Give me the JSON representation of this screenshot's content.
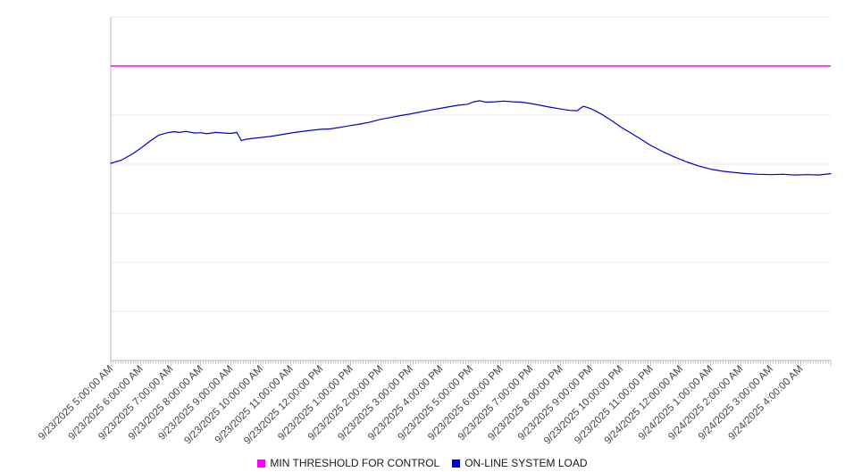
{
  "chart_data": {
    "type": "line",
    "title": "",
    "xlabel": "",
    "ylabel": "",
    "ylim": [
      0,
      100
    ],
    "y_axis_labels_visible": false,
    "grid": true,
    "grid_divisions": 7,
    "legend_position": "bottom",
    "x_axis": {
      "label_rotation_deg": -45,
      "minor_tick_interval_minutes": 5,
      "hours_span": 24,
      "tick_labels": [
        "9/23/2025 5:00:00 AM",
        "9/23/2025 6:00:00 AM",
        "9/23/2025 7:00:00 AM",
        "9/23/2025 8:00:00 AM",
        "9/23/2025 9:00:00 AM",
        "9/23/2025 10:00:00 AM",
        "9/23/2025 11:00:00 AM",
        "9/23/2025 12:00:00 PM",
        "9/23/2025 1:00:00 PM",
        "9/23/2025 2:00:00 PM",
        "9/23/2025 3:00:00 PM",
        "9/23/2025 4:00:00 PM",
        "9/23/2025 5:00:00 PM",
        "9/23/2025 6:00:00 PM",
        "9/23/2025 7:00:00 PM",
        "9/23/2025 8:00:00 PM",
        "9/23/2025 9:00:00 PM",
        "9/23/2025 10:00:00 PM",
        "9/23/2025 11:00:00 PM",
        "9/24/2025 12:00:00 AM",
        "9/24/2025 1:00:00 AM",
        "9/24/2025 2:00:00 AM",
        "9/24/2025 3:00:00 AM",
        "9/24/2025 4:00:00 AM"
      ]
    },
    "series": [
      {
        "name": "MIN THRESHOLD FOR CONTROL",
        "type": "threshold",
        "color": "#FF00FF",
        "value": 85.7
      },
      {
        "name": "ON-LINE SYSTEM LOAD",
        "type": "line",
        "color": "#0000CD",
        "points": [
          [
            0.0,
            57.4
          ],
          [
            0.35,
            58.3
          ],
          [
            0.7,
            60.0
          ],
          [
            1.0,
            61.8
          ],
          [
            1.3,
            63.8
          ],
          [
            1.6,
            65.6
          ],
          [
            1.9,
            66.3
          ],
          [
            2.1,
            66.6
          ],
          [
            2.3,
            66.4
          ],
          [
            2.5,
            66.7
          ],
          [
            2.8,
            66.2
          ],
          [
            3.0,
            66.3
          ],
          [
            3.2,
            66.0
          ],
          [
            3.5,
            66.4
          ],
          [
            3.8,
            66.2
          ],
          [
            4.0,
            66.1
          ],
          [
            4.2,
            66.4
          ],
          [
            4.35,
            64.0
          ],
          [
            4.5,
            64.4
          ],
          [
            4.8,
            64.7
          ],
          [
            5.0,
            64.9
          ],
          [
            5.3,
            65.2
          ],
          [
            5.6,
            65.6
          ],
          [
            6.0,
            66.2
          ],
          [
            6.3,
            66.6
          ],
          [
            6.6,
            66.9
          ],
          [
            7.0,
            67.3
          ],
          [
            7.3,
            67.4
          ],
          [
            7.6,
            67.8
          ],
          [
            8.0,
            68.4
          ],
          [
            8.3,
            68.8
          ],
          [
            8.6,
            69.3
          ],
          [
            9.0,
            70.2
          ],
          [
            9.3,
            70.7
          ],
          [
            9.6,
            71.2
          ],
          [
            10.0,
            71.8
          ],
          [
            10.3,
            72.3
          ],
          [
            10.6,
            72.8
          ],
          [
            11.0,
            73.4
          ],
          [
            11.3,
            73.9
          ],
          [
            11.6,
            74.3
          ],
          [
            11.9,
            74.6
          ],
          [
            12.1,
            75.3
          ],
          [
            12.3,
            75.6
          ],
          [
            12.5,
            75.2
          ],
          [
            12.8,
            75.3
          ],
          [
            13.1,
            75.5
          ],
          [
            13.4,
            75.3
          ],
          [
            13.7,
            75.2
          ],
          [
            14.0,
            74.8
          ],
          [
            14.3,
            74.3
          ],
          [
            14.6,
            73.8
          ],
          [
            15.0,
            73.2
          ],
          [
            15.3,
            72.8
          ],
          [
            15.55,
            72.7
          ],
          [
            15.75,
            74.0
          ],
          [
            15.9,
            73.6
          ],
          [
            16.1,
            72.9
          ],
          [
            16.4,
            71.5
          ],
          [
            16.7,
            69.8
          ],
          [
            17.0,
            68.0
          ],
          [
            17.3,
            66.4
          ],
          [
            17.6,
            64.8
          ],
          [
            18.0,
            62.6
          ],
          [
            18.4,
            60.8
          ],
          [
            18.8,
            59.2
          ],
          [
            19.2,
            57.8
          ],
          [
            19.6,
            56.6
          ],
          [
            20.0,
            55.7
          ],
          [
            20.4,
            55.1
          ],
          [
            20.8,
            54.7
          ],
          [
            21.2,
            54.4
          ],
          [
            21.6,
            54.2
          ],
          [
            22.0,
            54.1
          ],
          [
            22.4,
            54.2
          ],
          [
            22.8,
            54.0
          ],
          [
            23.2,
            54.1
          ],
          [
            23.6,
            54.0
          ],
          [
            24.0,
            54.4
          ]
        ]
      }
    ]
  },
  "colors": {
    "background": "#FFFFFF",
    "grid": "#E8E8E8",
    "axis": "#BBBBBB",
    "tick": "#999999",
    "tick_label": "#444444"
  }
}
